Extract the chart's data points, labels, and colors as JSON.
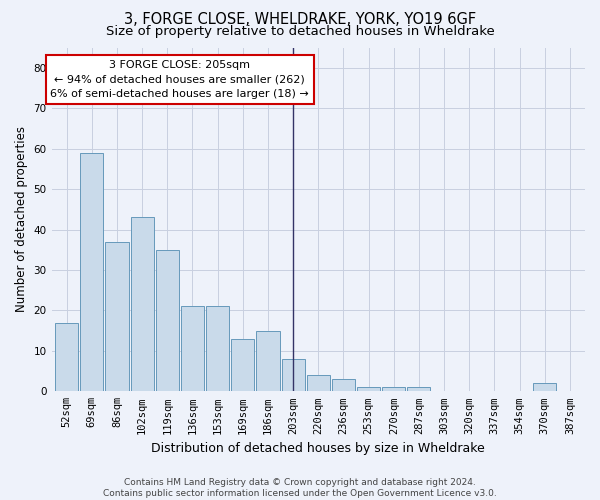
{
  "title": "3, FORGE CLOSE, WHELDRAKE, YORK, YO19 6GF",
  "subtitle": "Size of property relative to detached houses in Wheldrake",
  "xlabel": "Distribution of detached houses by size in Wheldrake",
  "ylabel": "Number of detached properties",
  "categories": [
    "52sqm",
    "69sqm",
    "86sqm",
    "102sqm",
    "119sqm",
    "136sqm",
    "153sqm",
    "169sqm",
    "186sqm",
    "203sqm",
    "220sqm",
    "236sqm",
    "253sqm",
    "270sqm",
    "287sqm",
    "303sqm",
    "320sqm",
    "337sqm",
    "354sqm",
    "370sqm",
    "387sqm"
  ],
  "values": [
    17,
    59,
    37,
    43,
    35,
    21,
    21,
    13,
    15,
    8,
    4,
    3,
    1,
    1,
    1,
    0,
    0,
    0,
    0,
    2,
    0
  ],
  "bar_color": "#c9daea",
  "bar_edge_color": "#6699bb",
  "ylim": [
    0,
    85
  ],
  "yticks": [
    0,
    10,
    20,
    30,
    40,
    50,
    60,
    70,
    80
  ],
  "property_bin_index": 9,
  "annotation_title": "3 FORGE CLOSE: 205sqm",
  "annotation_line1": "← 94% of detached houses are smaller (262)",
  "annotation_line2": "6% of semi-detached houses are larger (18) →",
  "vline_color": "#333366",
  "annotation_box_facecolor": "#ffffff",
  "annotation_border_color": "#cc0000",
  "footer_line1": "Contains HM Land Registry data © Crown copyright and database right 2024.",
  "footer_line2": "Contains public sector information licensed under the Open Government Licence v3.0.",
  "bg_color": "#eef2fa",
  "grid_color": "#c8cfe0",
  "title_fontsize": 10.5,
  "subtitle_fontsize": 9.5,
  "ylabel_fontsize": 8.5,
  "xlabel_fontsize": 9,
  "tick_fontsize": 7.5,
  "annotation_fontsize": 8,
  "footer_fontsize": 6.5
}
